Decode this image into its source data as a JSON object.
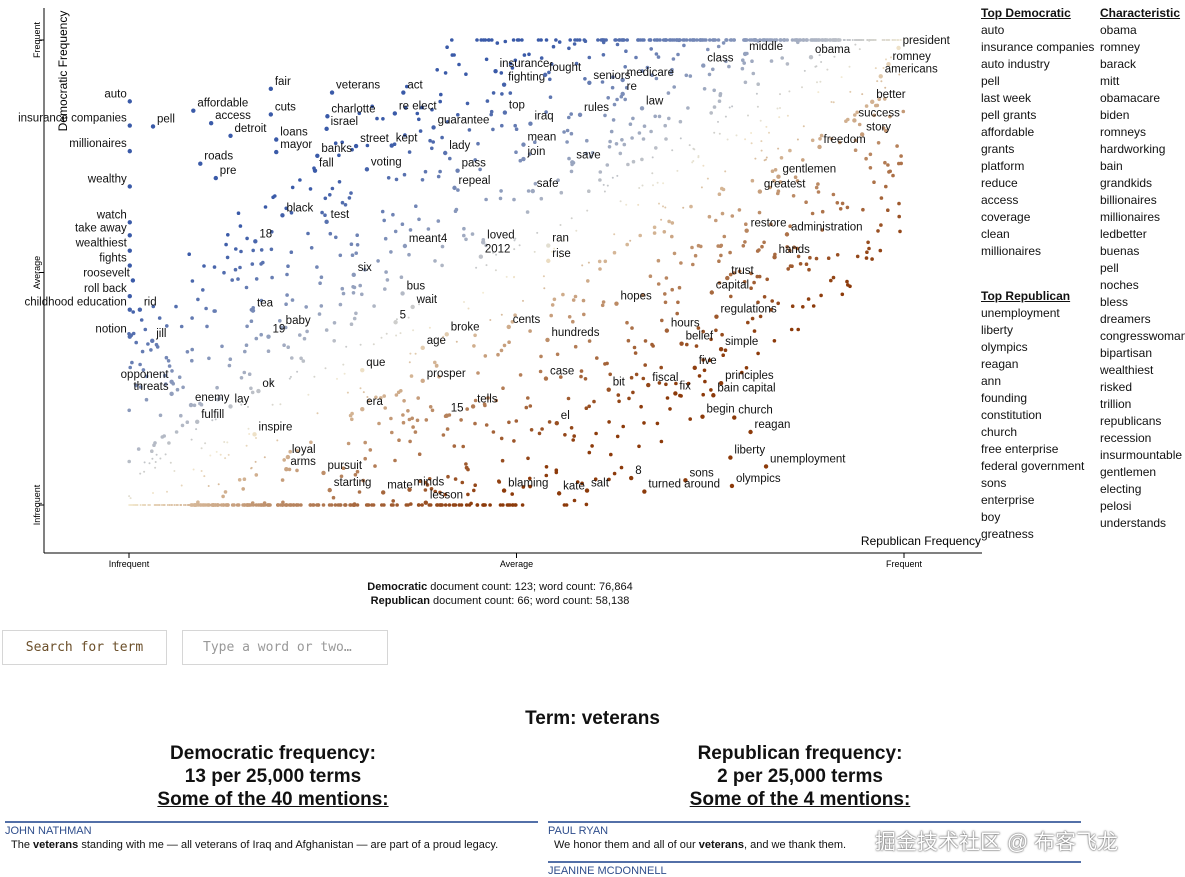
{
  "chart_data": {
    "type": "scatter",
    "ylabel": "Democratic Frequency",
    "xlabel": "Republican Frequency",
    "x_ticks": [
      "Infrequent",
      "Average",
      "Frequent"
    ],
    "y_ticks": [
      "Frequent",
      "Average",
      "Infrequent"
    ],
    "xlim": [
      0,
      1
    ],
    "ylim": [
      0,
      1
    ],
    "grid": false,
    "labeled_points": [
      {
        "term": "president",
        "x": 0.993,
        "y": 0.983,
        "side": "r"
      },
      {
        "term": "obama",
        "x": 0.88,
        "y": 0.963,
        "side": "r"
      },
      {
        "term": "middle",
        "x": 0.795,
        "y": 0.97,
        "side": "r"
      },
      {
        "term": "class",
        "x": 0.741,
        "y": 0.945,
        "side": "r"
      },
      {
        "term": "romney",
        "x": 0.98,
        "y": 0.948,
        "side": "r"
      },
      {
        "term": "americans",
        "x": 0.97,
        "y": 0.922,
        "side": "r"
      },
      {
        "term": "medicare",
        "x": 0.637,
        "y": 0.914,
        "side": "r"
      },
      {
        "term": "re",
        "x": 0.637,
        "y": 0.884,
        "side": "r"
      },
      {
        "term": "law",
        "x": 0.662,
        "y": 0.853,
        "side": "r"
      },
      {
        "term": "better",
        "x": 0.959,
        "y": 0.867,
        "side": "r"
      },
      {
        "term": "success",
        "x": 0.936,
        "y": 0.827,
        "side": "r"
      },
      {
        "term": "story",
        "x": 0.946,
        "y": 0.797,
        "side": "r"
      },
      {
        "term": "freedom",
        "x": 0.891,
        "y": 0.77,
        "side": "r"
      },
      {
        "term": "gentlemen",
        "x": 0.838,
        "y": 0.706,
        "side": "r"
      },
      {
        "term": "greatest",
        "x": 0.814,
        "y": 0.674,
        "side": "r"
      },
      {
        "term": "restore",
        "x": 0.797,
        "y": 0.59,
        "side": "r"
      },
      {
        "term": "administration",
        "x": 0.849,
        "y": 0.582,
        "side": "r"
      },
      {
        "term": "hands",
        "x": 0.833,
        "y": 0.533,
        "side": "r"
      },
      {
        "term": "trust",
        "x": 0.772,
        "y": 0.488,
        "side": "r"
      },
      {
        "term": "capital",
        "x": 0.752,
        "y": 0.457,
        "side": "r"
      },
      {
        "term": "regulations",
        "x": 0.758,
        "y": 0.405,
        "side": "r"
      },
      {
        "term": "hopes",
        "x": 0.629,
        "y": 0.433,
        "side": "r"
      },
      {
        "term": "hours",
        "x": 0.694,
        "y": 0.375,
        "side": "r"
      },
      {
        "term": "belief",
        "x": 0.713,
        "y": 0.347,
        "side": "r"
      },
      {
        "term": "simple",
        "x": 0.764,
        "y": 0.335,
        "side": "r"
      },
      {
        "term": "five",
        "x": 0.73,
        "y": 0.295,
        "side": "r"
      },
      {
        "term": "principles",
        "x": 0.764,
        "y": 0.262,
        "side": "r"
      },
      {
        "term": "bain capital",
        "x": 0.754,
        "y": 0.236,
        "side": "r"
      },
      {
        "term": "fiscal",
        "x": 0.67,
        "y": 0.258,
        "side": "r"
      },
      {
        "term": "fix",
        "x": 0.705,
        "y": 0.24,
        "side": "r"
      },
      {
        "term": "bit",
        "x": 0.619,
        "y": 0.248,
        "side": "r"
      },
      {
        "term": "begin",
        "x": 0.74,
        "y": 0.19,
        "side": "r"
      },
      {
        "term": "church",
        "x": 0.781,
        "y": 0.188,
        "side": "r"
      },
      {
        "term": "reagan",
        "x": 0.802,
        "y": 0.157,
        "side": "r"
      },
      {
        "term": "liberty",
        "x": 0.776,
        "y": 0.102,
        "side": "r"
      },
      {
        "term": "unemployment",
        "x": 0.822,
        "y": 0.083,
        "side": "r"
      },
      {
        "term": "olympics",
        "x": 0.778,
        "y": 0.041,
        "side": "r"
      },
      {
        "term": "sons",
        "x": 0.718,
        "y": 0.053,
        "side": "r"
      },
      {
        "term": "8",
        "x": 0.648,
        "y": 0.058,
        "side": "r"
      },
      {
        "term": "turned around",
        "x": 0.665,
        "y": 0.029,
        "side": "r"
      },
      {
        "term": "salt",
        "x": 0.591,
        "y": 0.031,
        "side": "r"
      },
      {
        "term": "kate",
        "x": 0.555,
        "y": 0.025,
        "side": "r"
      },
      {
        "term": "blaming",
        "x": 0.484,
        "y": 0.031,
        "side": "r"
      },
      {
        "term": "el",
        "x": 0.552,
        "y": 0.176,
        "side": "r"
      },
      {
        "term": "case",
        "x": 0.538,
        "y": 0.272,
        "side": "r"
      },
      {
        "term": "hundreds",
        "x": 0.54,
        "y": 0.355,
        "side": "r"
      },
      {
        "term": "cents",
        "x": 0.49,
        "y": 0.383,
        "side": "r"
      },
      {
        "term": "tells",
        "x": 0.444,
        "y": 0.212,
        "side": "r"
      },
      {
        "term": "15",
        "x": 0.41,
        "y": 0.192,
        "side": "r"
      },
      {
        "term": "prosper",
        "x": 0.379,
        "y": 0.267,
        "side": "r"
      },
      {
        "term": "broke",
        "x": 0.41,
        "y": 0.367,
        "side": "r"
      },
      {
        "term": "age",
        "x": 0.379,
        "y": 0.338,
        "side": "r"
      },
      {
        "term": "5",
        "x": 0.344,
        "y": 0.393,
        "side": "r"
      },
      {
        "term": "wait",
        "x": 0.366,
        "y": 0.426,
        "side": "r"
      },
      {
        "term": "bus",
        "x": 0.353,
        "y": 0.455,
        "side": "r"
      },
      {
        "term": "ran",
        "x": 0.541,
        "y": 0.558,
        "side": "r"
      },
      {
        "term": "rise",
        "x": 0.541,
        "y": 0.525,
        "side": "r"
      },
      {
        "term": "loved",
        "x": 0.457,
        "y": 0.565,
        "side": "r"
      },
      {
        "term": "2012",
        "x": 0.454,
        "y": 0.534,
        "side": "r"
      },
      {
        "term": "meant4",
        "x": 0.356,
        "y": 0.557,
        "side": "r"
      },
      {
        "term": "six",
        "x": 0.29,
        "y": 0.495,
        "side": "r"
      },
      {
        "term": "que",
        "x": 0.301,
        "y": 0.29,
        "side": "r"
      },
      {
        "term": "era",
        "x": 0.301,
        "y": 0.206,
        "side": "r"
      },
      {
        "term": "loyal",
        "x": 0.205,
        "y": 0.103,
        "side": "r"
      },
      {
        "term": "arms",
        "x": 0.203,
        "y": 0.077,
        "side": "r"
      },
      {
        "term": "pursuit",
        "x": 0.251,
        "y": 0.069,
        "side": "r"
      },
      {
        "term": "starting",
        "x": 0.259,
        "y": 0.032,
        "side": "r"
      },
      {
        "term": "mate",
        "x": 0.328,
        "y": 0.027,
        "side": "r"
      },
      {
        "term": "minds",
        "x": 0.362,
        "y": 0.033,
        "side": "r"
      },
      {
        "term": "lesson",
        "x": 0.383,
        "y": 0.005,
        "side": "r"
      },
      {
        "term": "inspire",
        "x": 0.162,
        "y": 0.152,
        "side": "r"
      },
      {
        "term": "ok",
        "x": 0.167,
        "y": 0.245,
        "side": "r"
      },
      {
        "term": "lay",
        "x": 0.131,
        "y": 0.212,
        "side": "r"
      },
      {
        "term": "enemy",
        "x": 0.08,
        "y": 0.215,
        "side": "r"
      },
      {
        "term": "fulfill",
        "x": 0.088,
        "y": 0.179,
        "side": "r"
      },
      {
        "term": "baby",
        "x": 0.197,
        "y": 0.381,
        "side": "r"
      },
      {
        "term": "19",
        "x": 0.18,
        "y": 0.362,
        "side": "r"
      },
      {
        "term": "tea",
        "x": 0.16,
        "y": 0.418,
        "side": "r"
      },
      {
        "term": "18",
        "x": 0.163,
        "y": 0.567,
        "side": "r"
      },
      {
        "term": "test",
        "x": 0.255,
        "y": 0.609,
        "side": "r"
      },
      {
        "term": "black",
        "x": 0.198,
        "y": 0.623,
        "side": "r"
      },
      {
        "term": "safe",
        "x": 0.521,
        "y": 0.675,
        "side": "r"
      },
      {
        "term": "repeal",
        "x": 0.42,
        "y": 0.682,
        "side": "r"
      },
      {
        "term": "pass",
        "x": 0.424,
        "y": 0.719,
        "side": "r"
      },
      {
        "term": "lady",
        "x": 0.408,
        "y": 0.757,
        "side": "r"
      },
      {
        "term": "join",
        "x": 0.509,
        "y": 0.744,
        "side": "r"
      },
      {
        "term": "mean",
        "x": 0.509,
        "y": 0.775,
        "side": "r"
      },
      {
        "term": "save",
        "x": 0.572,
        "y": 0.737,
        "side": "r"
      },
      {
        "term": "guarantee",
        "x": 0.393,
        "y": 0.812,
        "side": "r"
      },
      {
        "term": "iraq",
        "x": 0.518,
        "y": 0.82,
        "side": "r"
      },
      {
        "term": "rules",
        "x": 0.582,
        "y": 0.839,
        "side": "r"
      },
      {
        "term": "top",
        "x": 0.485,
        "y": 0.844,
        "side": "r"
      },
      {
        "term": "fighting",
        "x": 0.484,
        "y": 0.904,
        "side": "r"
      },
      {
        "term": "insurance",
        "x": 0.473,
        "y": 0.933,
        "side": "r"
      },
      {
        "term": "fought",
        "x": 0.537,
        "y": 0.925,
        "side": "r"
      },
      {
        "term": "seniors",
        "x": 0.594,
        "y": 0.908,
        "side": "r"
      },
      {
        "term": "kept",
        "x": 0.339,
        "y": 0.773,
        "side": "r"
      },
      {
        "term": "re elect",
        "x": 0.343,
        "y": 0.842,
        "side": "r"
      },
      {
        "term": "act",
        "x": 0.354,
        "y": 0.887,
        "side": "r"
      },
      {
        "term": "voting",
        "x": 0.307,
        "y": 0.722,
        "side": "r"
      },
      {
        "term": "street",
        "x": 0.293,
        "y": 0.772,
        "side": "r"
      },
      {
        "term": "veterans",
        "x": 0.262,
        "y": 0.887,
        "side": "r"
      },
      {
        "term": "charlotte",
        "x": 0.256,
        "y": 0.836,
        "side": "r"
      },
      {
        "term": "israel",
        "x": 0.255,
        "y": 0.809,
        "side": "r"
      },
      {
        "term": "banks",
        "x": 0.243,
        "y": 0.751,
        "side": "r"
      },
      {
        "term": "fall",
        "x": 0.24,
        "y": 0.719,
        "side": "r"
      },
      {
        "term": "mayor",
        "x": 0.19,
        "y": 0.759,
        "side": "r"
      },
      {
        "term": "loans",
        "x": 0.19,
        "y": 0.786,
        "side": "r"
      },
      {
        "term": "cuts",
        "x": 0.183,
        "y": 0.84,
        "side": "r"
      },
      {
        "term": "fair",
        "x": 0.183,
        "y": 0.895,
        "side": "r"
      },
      {
        "term": "detroit",
        "x": 0.131,
        "y": 0.794,
        "side": "r"
      },
      {
        "term": "affordable",
        "x": 0.083,
        "y": 0.848,
        "side": "r"
      },
      {
        "term": "access",
        "x": 0.106,
        "y": 0.821,
        "side": "r"
      },
      {
        "term": "roads",
        "x": 0.092,
        "y": 0.734,
        "side": "r"
      },
      {
        "term": "pre",
        "x": 0.112,
        "y": 0.703,
        "side": "r"
      },
      {
        "term": "pell",
        "x": 0.031,
        "y": 0.814,
        "side": "r"
      },
      {
        "term": "auto",
        "x": 0.001,
        "y": 0.868,
        "side": "l"
      },
      {
        "term": "insurance companies",
        "x": 0.001,
        "y": 0.816,
        "side": "l"
      },
      {
        "term": "millionaires",
        "x": 0.001,
        "y": 0.761,
        "side": "l"
      },
      {
        "term": "wealthy",
        "x": 0.001,
        "y": 0.685,
        "side": "l"
      },
      {
        "term": "watch",
        "x": 0.001,
        "y": 0.608,
        "side": "l"
      },
      {
        "term": "take away",
        "x": 0.001,
        "y": 0.58,
        "side": "l"
      },
      {
        "term": "wealthiest",
        "x": 0.001,
        "y": 0.547,
        "side": "l"
      },
      {
        "term": "fights",
        "x": 0.001,
        "y": 0.515,
        "side": "l"
      },
      {
        "term": "roosevelt",
        "x": 0.005,
        "y": 0.483,
        "side": "l"
      },
      {
        "term": "roll back",
        "x": 0.001,
        "y": 0.449,
        "side": "l"
      },
      {
        "term": "childhood education",
        "x": 0.001,
        "y": 0.42,
        "side": "l"
      },
      {
        "term": "rid",
        "x": 0.014,
        "y": 0.42,
        "side": "r"
      },
      {
        "term": "notion",
        "x": 0.001,
        "y": 0.362,
        "side": "l"
      },
      {
        "term": "jill",
        "x": 0.03,
        "y": 0.353,
        "side": "r"
      },
      {
        "term": "opponent",
        "x": 0.055,
        "y": 0.265,
        "side": "l"
      },
      {
        "term": "threats",
        "x": 0.055,
        "y": 0.239,
        "side": "l"
      }
    ]
  },
  "top_democratic": {
    "header": "Top Democratic",
    "items": [
      "auto",
      "insurance companies",
      "auto industry",
      "pell",
      "last week",
      "pell grants",
      "affordable",
      "grants",
      "platform",
      "reduce",
      "access",
      "coverage",
      "clean",
      "millionaires"
    ]
  },
  "top_republican": {
    "header": "Top Republican",
    "items": [
      "unemployment",
      "liberty",
      "olympics",
      "reagan",
      "ann",
      "founding",
      "constitution",
      "church",
      "free enterprise",
      "federal government",
      "sons",
      "enterprise",
      "boy",
      "greatness"
    ]
  },
  "characteristic": {
    "header": "Characteristic",
    "items": [
      "obama",
      "romney",
      "barack",
      "mitt",
      "obamacare",
      "biden",
      "romneys",
      "hardworking",
      "bain",
      "grandkids",
      "billionaires",
      "millionaires",
      "ledbetter",
      "buenas",
      "pell",
      "noches",
      "bless",
      "dreamers",
      "congresswoman",
      "bipartisan",
      "wealthiest",
      "risked",
      "trillion",
      "republicans",
      "recession",
      "insurmountable",
      "gentlemen",
      "electing",
      "pelosi",
      "understands"
    ]
  },
  "counts": {
    "dem_label": "Democratic",
    "dem_text": " document count: 123; word count: 76,864",
    "rep_label": "Republican",
    "rep_text": " document count: 66; word count: 58,138"
  },
  "search": {
    "button_label": "Search for term",
    "placeholder": "Type a word or two…"
  },
  "term": {
    "title": "Term: veterans",
    "dem_heading": "Democratic frequency:",
    "dem_rate": "13 per 25,000 terms",
    "dem_mentions": "Some of the 40 mentions:",
    "rep_heading": "Republican frequency:",
    "rep_rate": "2 per 25,000 terms",
    "rep_mentions": "Some of the 4 mentions:"
  },
  "snippets": {
    "dem_speaker": "JOHN NATHMAN",
    "dem_pre": "The ",
    "dem_term": "veterans",
    "dem_post": " standing with me — all veterans of Iraq and Afghanistan — are part of a proud legacy.",
    "rep_speaker": "PAUL RYAN",
    "rep_pre": "We honor them and all of our ",
    "rep_term": "veterans",
    "rep_post": ", and we thank them.",
    "rep_speaker2": "JEANINE MCDONNELL"
  },
  "watermark": "掘金技术社区 @ 布客飞龙",
  "colors": {
    "dem_blue": "#3a5aa8",
    "rep_brown": "#8c3a0a",
    "neutral": "#f5edd5",
    "accent_line": "#5370a8"
  }
}
